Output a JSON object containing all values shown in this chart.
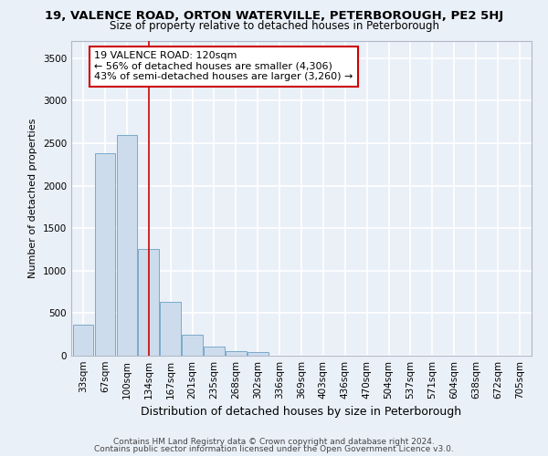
{
  "title1": "19, VALENCE ROAD, ORTON WATERVILLE, PETERBOROUGH, PE2 5HJ",
  "title2": "Size of property relative to detached houses in Peterborough",
  "xlabel": "Distribution of detached houses by size in Peterborough",
  "ylabel": "Number of detached properties",
  "footer1": "Contains HM Land Registry data © Crown copyright and database right 2024.",
  "footer2": "Contains public sector information licensed under the Open Government Licence v3.0.",
  "bin_labels": [
    "33sqm",
    "67sqm",
    "100sqm",
    "134sqm",
    "167sqm",
    "201sqm",
    "235sqm",
    "268sqm",
    "302sqm",
    "336sqm",
    "369sqm",
    "403sqm",
    "436sqm",
    "470sqm",
    "504sqm",
    "537sqm",
    "571sqm",
    "604sqm",
    "638sqm",
    "672sqm",
    "705sqm"
  ],
  "bar_values": [
    370,
    2380,
    2600,
    1250,
    630,
    250,
    110,
    55,
    40,
    0,
    0,
    0,
    0,
    0,
    0,
    0,
    0,
    0,
    0,
    0,
    0
  ],
  "bar_color": "#ccdcec",
  "bar_edge_color": "#7aaaca",
  "ylim": [
    0,
    3700
  ],
  "yticks": [
    0,
    500,
    1000,
    1500,
    2000,
    2500,
    3000,
    3500
  ],
  "vline_x": 3.0,
  "vline_color": "#cc0000",
  "annotation_text": "19 VALENCE ROAD: 120sqm\n← 56% of detached houses are smaller (4,306)\n43% of semi-detached houses are larger (3,260) →",
  "annotation_box_color": "#ffffff",
  "annotation_box_edge": "#cc0000",
  "background_color": "#eaf0f8",
  "grid_color": "#ffffff",
  "title1_fontsize": 9.5,
  "title2_fontsize": 8.5,
  "xlabel_fontsize": 9,
  "ylabel_fontsize": 8,
  "tick_fontsize": 7.5,
  "footer_fontsize": 6.5
}
